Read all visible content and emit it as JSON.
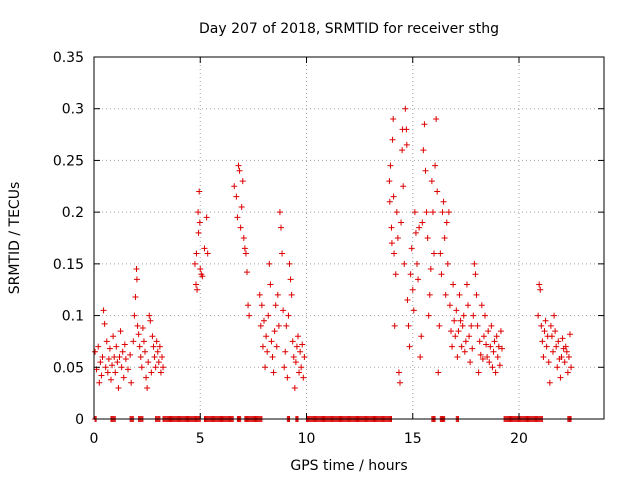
{
  "chart_data": {
    "type": "scatter",
    "title": "Day 207 of 2018, SRMTID for receiver sthg",
    "xlabel": "GPS time / hours",
    "ylabel": "SRMTID / TECUs",
    "xlim": [
      0,
      24
    ],
    "ylim": [
      0,
      0.35
    ],
    "xticks": [
      0,
      5,
      10,
      15,
      20
    ],
    "xtick_labels": [
      "0",
      "5",
      "10",
      "15",
      "20"
    ],
    "yticks": [
      0,
      0.05,
      0.1,
      0.15,
      0.2,
      0.25,
      0.3,
      0.35
    ],
    "ytick_labels": [
      "0",
      "0.05",
      "0.1",
      "0.15",
      "0.2",
      "0.25",
      "0.3",
      "0.35"
    ],
    "grid": true,
    "marker": "+",
    "series": [
      {
        "name": "SRMTID",
        "color": "#dd0000",
        "points": [
          [
            0.05,
            0.065
          ],
          [
            0.12,
            0.048
          ],
          [
            0.2,
            0.07
          ],
          [
            0.25,
            0.035
          ],
          [
            0.3,
            0.055
          ],
          [
            0.35,
            0.042
          ],
          [
            0.4,
            0.06
          ],
          [
            0.45,
            0.105
          ],
          [
            0.5,
            0.092
          ],
          [
            0.55,
            0.05
          ],
          [
            0.6,
            0.075
          ],
          [
            0.65,
            0.045
          ],
          [
            0.7,
            0.058
          ],
          [
            0.75,
            0.068
          ],
          [
            0.8,
            0.038
          ],
          [
            0.85,
            0.052
          ],
          [
            0.9,
            0.08
          ],
          [
            0.95,
            0.06
          ],
          [
            1.0,
            0.045
          ],
          [
            1.05,
            0.07
          ],
          [
            1.1,
            0.055
          ],
          [
            1.15,
            0.03
          ],
          [
            1.2,
            0.06
          ],
          [
            1.25,
            0.085
          ],
          [
            1.3,
            0.05
          ],
          [
            1.35,
            0.065
          ],
          [
            1.4,
            0.04
          ],
          [
            1.45,
            0.072
          ],
          [
            1.5,
            0.058
          ],
          [
            1.6,
            0.048
          ],
          [
            1.7,
            0.062
          ],
          [
            1.75,
            0.035
          ],
          [
            1.85,
            0.075
          ],
          [
            1.9,
            0.1
          ],
          [
            1.95,
            0.118
          ],
          [
            2.0,
            0.145
          ],
          [
            2.02,
            0.135
          ],
          [
            2.05,
            0.09
          ],
          [
            2.1,
            0.082
          ],
          [
            2.15,
            0.07
          ],
          [
            2.2,
            0.06
          ],
          [
            2.25,
            0.05
          ],
          [
            2.3,
            0.088
          ],
          [
            2.35,
            0.075
          ],
          [
            2.4,
            0.065
          ],
          [
            2.45,
            0.04
          ],
          [
            2.5,
            0.03
          ],
          [
            2.55,
            0.055
          ],
          [
            2.6,
            0.1
          ],
          [
            2.65,
            0.095
          ],
          [
            2.7,
            0.045
          ],
          [
            2.75,
            0.08
          ],
          [
            2.8,
            0.07
          ],
          [
            2.85,
            0.06
          ],
          [
            2.9,
            0.05
          ],
          [
            2.95,
            0.075
          ],
          [
            3.0,
            0.065
          ],
          [
            3.05,
            0.055
          ],
          [
            3.1,
            0.07
          ],
          [
            3.15,
            0.045
          ],
          [
            3.2,
            0.06
          ],
          [
            3.25,
            0.05
          ],
          [
            4.75,
            0.15
          ],
          [
            4.8,
            0.13
          ],
          [
            4.82,
            0.16
          ],
          [
            4.85,
            0.125
          ],
          [
            4.9,
            0.2
          ],
          [
            4.92,
            0.18
          ],
          [
            4.95,
            0.22
          ],
          [
            4.98,
            0.19
          ],
          [
            5.0,
            0.145
          ],
          [
            5.05,
            0.14
          ],
          [
            5.1,
            0.138
          ],
          [
            5.2,
            0.165
          ],
          [
            5.3,
            0.195
          ],
          [
            5.35,
            0.16
          ],
          [
            6.6,
            0.225
          ],
          [
            6.7,
            0.215
          ],
          [
            6.75,
            0.195
          ],
          [
            6.8,
            0.245
          ],
          [
            6.85,
            0.24
          ],
          [
            6.9,
            0.185
          ],
          [
            6.95,
            0.205
          ],
          [
            7.0,
            0.23
          ],
          [
            7.05,
            0.175
          ],
          [
            7.1,
            0.165
          ],
          [
            7.15,
            0.16
          ],
          [
            7.2,
            0.142
          ],
          [
            7.25,
            0.11
          ],
          [
            7.3,
            0.1
          ],
          [
            7.8,
            0.12
          ],
          [
            7.85,
            0.09
          ],
          [
            7.9,
            0.11
          ],
          [
            7.95,
            0.07
          ],
          [
            8.0,
            0.095
          ],
          [
            8.05,
            0.05
          ],
          [
            8.1,
            0.08
          ],
          [
            8.15,
            0.065
          ],
          [
            8.2,
            0.1
          ],
          [
            8.25,
            0.15
          ],
          [
            8.3,
            0.13
          ],
          [
            8.35,
            0.075
          ],
          [
            8.4,
            0.06
          ],
          [
            8.45,
            0.045
          ],
          [
            8.5,
            0.085
          ],
          [
            8.55,
            0.11
          ],
          [
            8.6,
            0.07
          ],
          [
            8.65,
            0.12
          ],
          [
            8.7,
            0.09
          ],
          [
            8.75,
            0.2
          ],
          [
            8.8,
            0.185
          ],
          [
            8.85,
            0.16
          ],
          [
            8.9,
            0.105
          ],
          [
            8.95,
            0.05
          ],
          [
            9.0,
            0.065
          ],
          [
            9.05,
            0.09
          ],
          [
            9.1,
            0.04
          ],
          [
            9.15,
            0.1
          ],
          [
            9.2,
            0.15
          ],
          [
            9.25,
            0.135
          ],
          [
            9.3,
            0.12
          ],
          [
            9.35,
            0.075
          ],
          [
            9.4,
            0.06
          ],
          [
            9.45,
            0.03
          ],
          [
            9.5,
            0.055
          ],
          [
            9.55,
            0.07
          ],
          [
            9.6,
            0.08
          ],
          [
            9.65,
            0.045
          ],
          [
            9.7,
            0.065
          ],
          [
            9.75,
            0.05
          ],
          [
            9.8,
            0.072
          ],
          [
            9.85,
            0.04
          ],
          [
            9.9,
            0.06
          ],
          [
            13.9,
            0.23
          ],
          [
            13.92,
            0.21
          ],
          [
            13.95,
            0.245
          ],
          [
            14.0,
            0.185
          ],
          [
            14.02,
            0.17
          ],
          [
            14.05,
            0.27
          ],
          [
            14.08,
            0.29
          ],
          [
            14.1,
            0.215
          ],
          [
            14.12,
            0.16
          ],
          [
            14.15,
            0.09
          ],
          [
            14.2,
            0.14
          ],
          [
            14.25,
            0.2
          ],
          [
            14.3,
            0.175
          ],
          [
            14.35,
            0.045
          ],
          [
            14.4,
            0.035
          ],
          [
            14.45,
            0.19
          ],
          [
            14.5,
            0.26
          ],
          [
            14.52,
            0.28
          ],
          [
            14.55,
            0.225
          ],
          [
            14.6,
            0.15
          ],
          [
            14.65,
            0.3
          ],
          [
            14.7,
            0.28
          ],
          [
            14.72,
            0.265
          ],
          [
            14.75,
            0.115
          ],
          [
            14.8,
            0.09
          ],
          [
            14.85,
            0.07
          ],
          [
            14.9,
            0.14
          ],
          [
            14.95,
            0.165
          ],
          [
            15.0,
            0.125
          ],
          [
            15.05,
            0.105
          ],
          [
            15.1,
            0.2
          ],
          [
            15.15,
            0.18
          ],
          [
            15.2,
            0.15
          ],
          [
            15.25,
            0.135
          ],
          [
            15.3,
            0.185
          ],
          [
            15.35,
            0.06
          ],
          [
            15.4,
            0.08
          ],
          [
            15.45,
            0.19
          ],
          [
            15.5,
            0.26
          ],
          [
            15.55,
            0.285
          ],
          [
            15.6,
            0.24
          ],
          [
            15.65,
            0.2
          ],
          [
            15.7,
            0.175
          ],
          [
            15.75,
            0.1
          ],
          [
            15.8,
            0.12
          ],
          [
            15.85,
            0.145
          ],
          [
            15.9,
            0.23
          ],
          [
            15.95,
            0.2
          ],
          [
            16.0,
            0.16
          ],
          [
            16.05,
            0.245
          ],
          [
            16.1,
            0.29
          ],
          [
            16.15,
            0.22
          ],
          [
            16.2,
            0.045
          ],
          [
            16.25,
            0.09
          ],
          [
            16.3,
            0.16
          ],
          [
            16.35,
            0.14
          ],
          [
            16.4,
            0.2
          ],
          [
            16.45,
            0.21
          ],
          [
            16.5,
            0.175
          ],
          [
            16.55,
            0.12
          ],
          [
            16.6,
            0.19
          ],
          [
            16.65,
            0.15
          ],
          [
            16.7,
            0.2
          ],
          [
            16.75,
            0.11
          ],
          [
            16.8,
            0.085
          ],
          [
            16.85,
            0.07
          ],
          [
            16.9,
            0.13
          ],
          [
            16.95,
            0.095
          ],
          [
            17.0,
            0.08
          ],
          [
            17.05,
            0.105
          ],
          [
            17.1,
            0.06
          ],
          [
            17.15,
            0.085
          ],
          [
            17.2,
            0.12
          ],
          [
            17.25,
            0.095
          ],
          [
            17.3,
            0.07
          ],
          [
            17.35,
            0.09
          ],
          [
            17.4,
            0.1
          ],
          [
            17.45,
            0.065
          ],
          [
            17.5,
            0.075
          ],
          [
            17.55,
            0.13
          ],
          [
            17.6,
            0.11
          ],
          [
            17.65,
            0.08
          ],
          [
            17.7,
            0.055
          ],
          [
            17.75,
            0.09
          ],
          [
            17.8,
            0.068
          ],
          [
            17.85,
            0.1
          ],
          [
            17.9,
            0.15
          ],
          [
            17.95,
            0.14
          ],
          [
            18.0,
            0.12
          ],
          [
            18.05,
            0.09
          ],
          [
            18.1,
            0.045
          ],
          [
            18.15,
            0.075
          ],
          [
            18.2,
            0.062
          ],
          [
            18.25,
            0.11
          ],
          [
            18.3,
            0.058
          ],
          [
            18.35,
            0.08
          ],
          [
            18.4,
            0.1
          ],
          [
            18.45,
            0.072
          ],
          [
            18.5,
            0.06
          ],
          [
            18.55,
            0.085
          ],
          [
            18.6,
            0.055
          ],
          [
            18.65,
            0.07
          ],
          [
            18.7,
            0.09
          ],
          [
            18.75,
            0.05
          ],
          [
            18.8,
            0.065
          ],
          [
            18.85,
            0.075
          ],
          [
            18.9,
            0.045
          ],
          [
            18.95,
            0.08
          ],
          [
            19.0,
            0.06
          ],
          [
            19.05,
            0.07
          ],
          [
            19.1,
            0.052
          ],
          [
            19.15,
            0.085
          ],
          [
            19.2,
            0.068
          ],
          [
            20.9,
            0.1
          ],
          [
            20.95,
            0.13
          ],
          [
            21.0,
            0.125
          ],
          [
            21.05,
            0.09
          ],
          [
            21.1,
            0.075
          ],
          [
            21.15,
            0.06
          ],
          [
            21.2,
            0.085
          ],
          [
            21.25,
            0.095
          ],
          [
            21.3,
            0.07
          ],
          [
            21.35,
            0.08
          ],
          [
            21.4,
            0.055
          ],
          [
            21.45,
            0.035
          ],
          [
            21.5,
            0.09
          ],
          [
            21.55,
            0.08
          ],
          [
            21.6,
            0.065
          ],
          [
            21.65,
            0.1
          ],
          [
            21.7,
            0.085
          ],
          [
            21.75,
            0.07
          ],
          [
            21.8,
            0.05
          ],
          [
            21.85,
            0.075
          ],
          [
            21.9,
            0.058
          ],
          [
            21.95,
            0.04
          ],
          [
            22.0,
            0.06
          ],
          [
            22.05,
            0.078
          ],
          [
            22.1,
            0.068
          ],
          [
            22.15,
            0.055
          ],
          [
            22.2,
            0.07
          ],
          [
            22.25,
            0.065
          ],
          [
            22.3,
            0.045
          ],
          [
            22.35,
            0.06
          ],
          [
            22.4,
            0.082
          ],
          [
            22.45,
            0.05
          ]
        ],
        "zero_runs": [
          [
            0.05,
            0.12
          ],
          [
            0.8,
            1.0
          ],
          [
            1.7,
            1.85
          ],
          [
            2.1,
            2.3
          ],
          [
            2.9,
            3.1
          ],
          [
            3.25,
            5.0
          ],
          [
            5.2,
            6.55
          ],
          [
            6.75,
            6.9
          ],
          [
            7.1,
            7.9
          ],
          [
            9.1,
            9.2
          ],
          [
            9.5,
            9.6
          ],
          [
            10.0,
            14.0
          ],
          [
            15.9,
            16.05
          ],
          [
            16.3,
            16.5
          ],
          [
            17.05,
            17.15
          ],
          [
            19.3,
            21.1
          ],
          [
            22.3,
            22.45
          ]
        ]
      }
    ]
  }
}
